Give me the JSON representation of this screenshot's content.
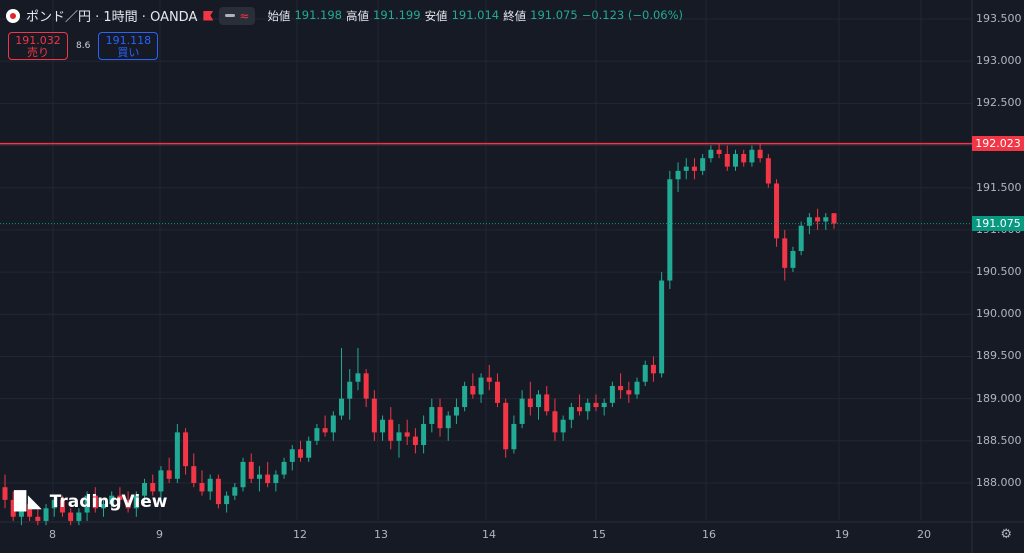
{
  "header": {
    "symbol": "ポンド／円 · 1時間 · OANDA",
    "ohlc": [
      {
        "label": "始値",
        "value": "191.198"
      },
      {
        "label": "高値",
        "value": "191.199"
      },
      {
        "label": "安値",
        "value": "191.014"
      },
      {
        "label": "終値",
        "value": "191.075"
      },
      {
        "label": "",
        "value": "−0.123 (−0.06%)"
      }
    ],
    "sell": {
      "price": "191.032",
      "label": "売り"
    },
    "spread": "8.6",
    "buy": {
      "price": "191.118",
      "label": "買い"
    }
  },
  "price_axis": {
    "labels": [
      "193.500",
      "193.000",
      "192.500",
      "192.000",
      "191.500",
      "191.000",
      "190.500",
      "190.000",
      "189.500",
      "189.000",
      "188.500",
      "188.000"
    ]
  },
  "time_axis": {
    "labels": [
      "8",
      "9",
      "12",
      "13",
      "14",
      "15",
      "16",
      "19",
      "20"
    ]
  },
  "horizontal_line": {
    "price": "192.023",
    "color": "#f23645"
  },
  "last_price": {
    "price": "191.075",
    "color": "#089981"
  },
  "watermark": "TradingView",
  "colors": {
    "up": "#22ab94",
    "down": "#f23645",
    "background": "#161a25",
    "grid": "#232733"
  },
  "chart_data": {
    "type": "candlestick",
    "title": "ポンド／円 · 1時間 · OANDA",
    "ylim": [
      187.6,
      193.7
    ],
    "y_ticks": [
      188.0,
      188.5,
      189.0,
      189.5,
      190.0,
      190.5,
      191.0,
      191.5,
      192.0,
      192.5,
      193.0,
      193.5
    ],
    "x_ticks": [
      "8",
      "9",
      "12",
      "13",
      "14",
      "15",
      "16",
      "19",
      "20"
    ],
    "horizontal_line": 192.023,
    "last_price": 191.075,
    "candles": [
      [
        187.95,
        188.1,
        187.7,
        187.8
      ],
      [
        187.8,
        187.9,
        187.55,
        187.6
      ],
      [
        187.6,
        187.85,
        187.5,
        187.75
      ],
      [
        187.75,
        187.8,
        187.55,
        187.6
      ],
      [
        187.6,
        187.7,
        187.5,
        187.55
      ],
      [
        187.55,
        187.75,
        187.5,
        187.7
      ],
      [
        187.7,
        187.85,
        187.6,
        187.8
      ],
      [
        187.8,
        187.85,
        187.6,
        187.65
      ],
      [
        187.65,
        187.7,
        187.5,
        187.55
      ],
      [
        187.55,
        187.7,
        187.5,
        187.65
      ],
      [
        187.65,
        187.9,
        187.55,
        187.85
      ],
      [
        187.85,
        187.95,
        187.65,
        187.7
      ],
      [
        187.7,
        187.8,
        187.6,
        187.75
      ],
      [
        187.75,
        187.9,
        187.7,
        187.85
      ],
      [
        187.85,
        187.95,
        187.75,
        187.8
      ],
      [
        187.8,
        187.9,
        187.65,
        187.7
      ],
      [
        187.7,
        187.9,
        187.6,
        187.85
      ],
      [
        187.85,
        188.05,
        187.75,
        188.0
      ],
      [
        188.0,
        188.1,
        187.85,
        187.9
      ],
      [
        187.9,
        188.2,
        187.8,
        188.15
      ],
      [
        188.15,
        188.3,
        188.0,
        188.05
      ],
      [
        188.05,
        188.7,
        188.0,
        188.6
      ],
      [
        188.6,
        188.65,
        188.1,
        188.2
      ],
      [
        188.2,
        188.35,
        187.95,
        188.0
      ],
      [
        188.0,
        188.15,
        187.85,
        187.9
      ],
      [
        187.9,
        188.1,
        187.8,
        188.05
      ],
      [
        188.05,
        188.1,
        187.7,
        187.75
      ],
      [
        187.75,
        187.9,
        187.65,
        187.85
      ],
      [
        187.85,
        188.0,
        187.8,
        187.95
      ],
      [
        187.95,
        188.3,
        187.9,
        188.25
      ],
      [
        188.25,
        188.35,
        188.0,
        188.05
      ],
      [
        188.05,
        188.2,
        187.9,
        188.1
      ],
      [
        188.1,
        188.25,
        187.95,
        188.0
      ],
      [
        188.0,
        188.15,
        187.9,
        188.1
      ],
      [
        188.1,
        188.3,
        188.05,
        188.25
      ],
      [
        188.25,
        188.45,
        188.15,
        188.4
      ],
      [
        188.4,
        188.5,
        188.25,
        188.3
      ],
      [
        188.3,
        188.55,
        188.25,
        188.5
      ],
      [
        188.5,
        188.7,
        188.45,
        188.65
      ],
      [
        188.65,
        188.8,
        188.55,
        188.6
      ],
      [
        188.6,
        188.85,
        188.5,
        188.8
      ],
      [
        188.8,
        189.6,
        188.75,
        189.0
      ],
      [
        189.0,
        189.35,
        188.75,
        189.2
      ],
      [
        189.2,
        189.6,
        189.1,
        189.3
      ],
      [
        189.3,
        189.35,
        188.9,
        189.0
      ],
      [
        189.0,
        189.1,
        188.5,
        188.6
      ],
      [
        188.6,
        188.8,
        188.5,
        188.75
      ],
      [
        188.75,
        188.9,
        188.4,
        188.5
      ],
      [
        188.5,
        188.7,
        188.3,
        188.6
      ],
      [
        188.6,
        188.75,
        188.45,
        188.55
      ],
      [
        188.55,
        188.65,
        188.35,
        188.45
      ],
      [
        188.45,
        188.8,
        188.35,
        188.7
      ],
      [
        188.7,
        189.0,
        188.6,
        188.9
      ],
      [
        188.9,
        189.0,
        188.55,
        188.65
      ],
      [
        188.65,
        188.85,
        188.5,
        188.8
      ],
      [
        188.8,
        189.0,
        188.7,
        188.9
      ],
      [
        188.9,
        189.2,
        188.85,
        189.15
      ],
      [
        189.15,
        189.3,
        189.0,
        189.05
      ],
      [
        189.05,
        189.3,
        188.95,
        189.25
      ],
      [
        189.25,
        189.4,
        189.1,
        189.2
      ],
      [
        189.2,
        189.3,
        188.9,
        188.95
      ],
      [
        188.95,
        189.0,
        188.3,
        188.4
      ],
      [
        188.4,
        188.8,
        188.35,
        188.7
      ],
      [
        188.7,
        189.1,
        188.65,
        189.0
      ],
      [
        189.0,
        189.2,
        188.8,
        188.9
      ],
      [
        188.9,
        189.1,
        188.75,
        189.05
      ],
      [
        189.05,
        189.15,
        188.8,
        188.85
      ],
      [
        188.85,
        189.0,
        188.5,
        188.6
      ],
      [
        188.6,
        188.8,
        188.5,
        188.75
      ],
      [
        188.75,
        188.95,
        188.65,
        188.9
      ],
      [
        188.9,
        189.05,
        188.8,
        188.85
      ],
      [
        188.85,
        189.0,
        188.75,
        188.95
      ],
      [
        188.95,
        189.05,
        188.85,
        188.9
      ],
      [
        188.9,
        189.0,
        188.8,
        188.95
      ],
      [
        188.95,
        189.2,
        188.9,
        189.15
      ],
      [
        189.15,
        189.3,
        189.0,
        189.1
      ],
      [
        189.1,
        189.2,
        188.95,
        189.05
      ],
      [
        189.05,
        189.25,
        189.0,
        189.2
      ],
      [
        189.2,
        189.45,
        189.15,
        189.4
      ],
      [
        189.4,
        189.5,
        189.2,
        189.3
      ],
      [
        189.3,
        190.5,
        189.25,
        190.4
      ],
      [
        190.4,
        191.7,
        190.3,
        191.6
      ],
      [
        191.6,
        191.8,
        191.45,
        191.7
      ],
      [
        191.7,
        191.85,
        191.6,
        191.75
      ],
      [
        191.75,
        191.85,
        191.6,
        191.7
      ],
      [
        191.7,
        191.9,
        191.65,
        191.85
      ],
      [
        191.85,
        192.0,
        191.8,
        191.95
      ],
      [
        191.95,
        192.03,
        191.85,
        191.9
      ],
      [
        191.9,
        192.0,
        191.7,
        191.75
      ],
      [
        191.75,
        191.95,
        191.7,
        191.9
      ],
      [
        191.9,
        191.95,
        191.75,
        191.8
      ],
      [
        191.8,
        192.0,
        191.75,
        191.95
      ],
      [
        191.95,
        192.03,
        191.8,
        191.85
      ],
      [
        191.85,
        191.9,
        191.5,
        191.55
      ],
      [
        191.55,
        191.6,
        190.8,
        190.9
      ],
      [
        190.9,
        191.0,
        190.4,
        190.55
      ],
      [
        190.55,
        190.8,
        190.5,
        190.75
      ],
      [
        190.75,
        191.1,
        190.7,
        191.05
      ],
      [
        191.05,
        191.2,
        190.95,
        191.15
      ],
      [
        191.15,
        191.25,
        191.0,
        191.1
      ],
      [
        191.1,
        191.2,
        191.0,
        191.15
      ],
      [
        191.198,
        191.199,
        191.014,
        191.075
      ]
    ]
  }
}
